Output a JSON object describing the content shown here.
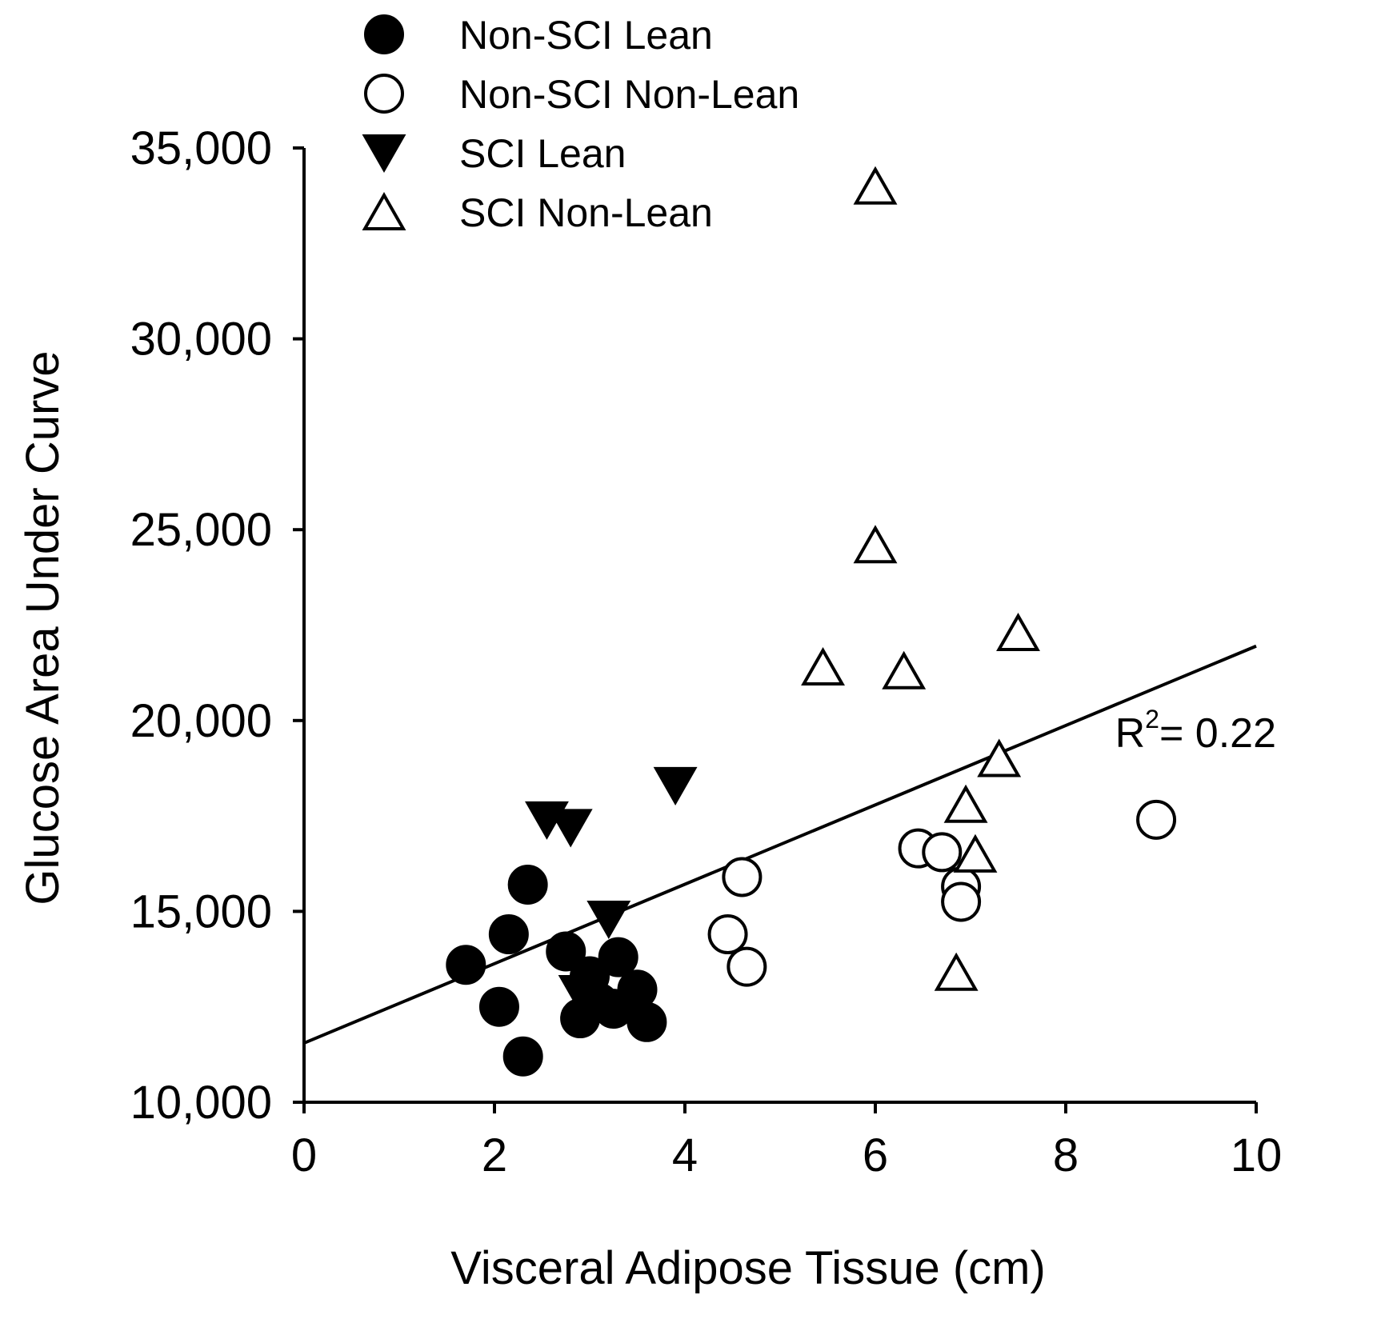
{
  "chart_data": {
    "type": "scatter",
    "title": "",
    "xlabel": "Visceral Adipose Tissue (cm)",
    "ylabel": "Glucose Area Under Curve",
    "xlim": [
      0,
      10
    ],
    "ylim": [
      10000,
      35000
    ],
    "xticks": [
      0,
      2,
      4,
      6,
      8,
      10
    ],
    "xtick_labels": [
      "0",
      "2",
      "4",
      "6",
      "8",
      "10"
    ],
    "yticks": [
      10000,
      15000,
      20000,
      25000,
      30000,
      35000
    ],
    "ytick_labels": [
      "10,000",
      "15,000",
      "20,000",
      "25,000",
      "30,000",
      "35,000"
    ],
    "grid": false,
    "legend_position": "top",
    "series": [
      {
        "name": "Non-SCI Lean",
        "marker": "filled-circle",
        "points": [
          [
            1.7,
            13600
          ],
          [
            2.05,
            12500
          ],
          [
            2.15,
            14400
          ],
          [
            2.3,
            11200
          ],
          [
            2.35,
            15700
          ],
          [
            2.75,
            13950
          ],
          [
            2.9,
            12200
          ],
          [
            3.0,
            13300
          ],
          [
            3.1,
            12600
          ],
          [
            3.25,
            12450
          ],
          [
            3.3,
            13800
          ],
          [
            3.5,
            12950
          ],
          [
            3.6,
            12100
          ]
        ]
      },
      {
        "name": "Non-SCI Non-Lean",
        "marker": "open-circle",
        "points": [
          [
            4.45,
            14400
          ],
          [
            4.6,
            15900
          ],
          [
            4.65,
            13550
          ],
          [
            6.45,
            16650
          ],
          [
            6.7,
            16550
          ],
          [
            6.9,
            15650
          ],
          [
            6.9,
            15250
          ],
          [
            8.95,
            17400
          ]
        ]
      },
      {
        "name": "SCI Lean",
        "marker": "filled-down-triangle",
        "points": [
          [
            2.55,
            17400
          ],
          [
            2.8,
            17200
          ],
          [
            2.9,
            12850
          ],
          [
            3.2,
            14800
          ],
          [
            3.9,
            18300
          ]
        ]
      },
      {
        "name": "SCI Non-Lean",
        "marker": "open-up-triangle",
        "points": [
          [
            5.45,
            21400
          ],
          [
            6.0,
            34000
          ],
          [
            6.0,
            24600
          ],
          [
            6.3,
            21300
          ],
          [
            6.85,
            13400
          ],
          [
            6.95,
            17800
          ],
          [
            7.05,
            16500
          ],
          [
            7.3,
            19000
          ],
          [
            7.5,
            22300
          ]
        ]
      }
    ],
    "fit_line": {
      "x": [
        0,
        10
      ],
      "y": [
        11550,
        21950
      ]
    },
    "annotation": {
      "text": "R",
      "superscript": "2",
      "value": "= 0.22"
    }
  }
}
